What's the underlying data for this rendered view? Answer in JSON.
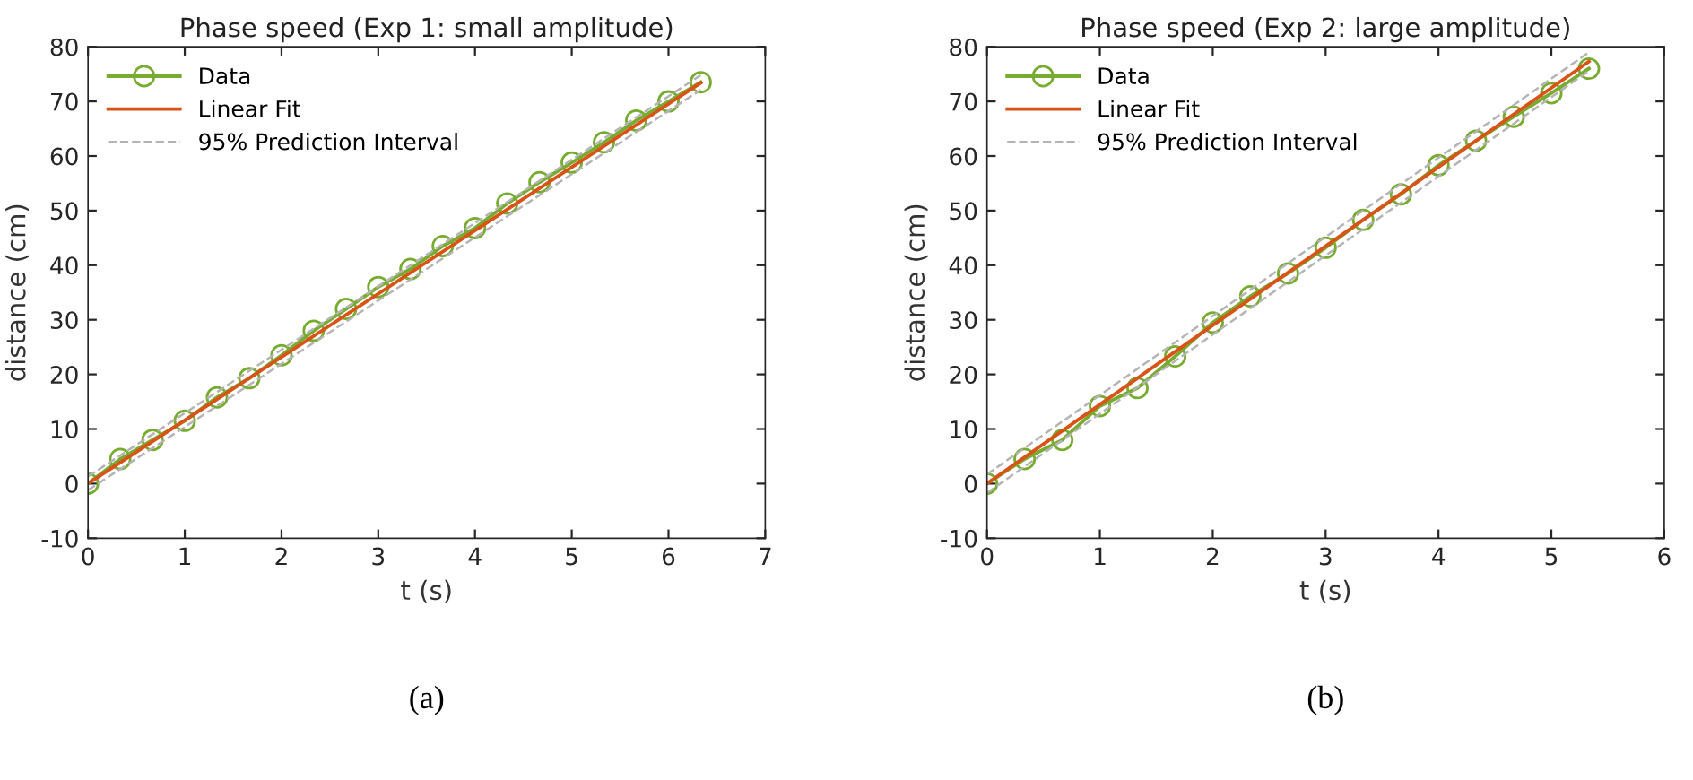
{
  "chart_data": [
    {
      "type": "line",
      "title": "Phase speed (Exp 1: small amplitude)",
      "xlabel": "t (s)",
      "ylabel": "distance (cm)",
      "annotations": [
        "(a)"
      ],
      "xlim": [
        0,
        7
      ],
      "xticks": [
        0,
        1,
        2,
        3,
        4,
        5,
        6,
        7
      ],
      "ylim": [
        -10,
        80
      ],
      "yticks": [
        -10,
        0,
        10,
        20,
        30,
        40,
        50,
        60,
        70,
        80
      ],
      "grid": false,
      "legend": "top left",
      "series": [
        {
          "name": "Data",
          "color": "#77ac30",
          "marker": "circle",
          "line_style": "solid",
          "x": [
            0,
            0.333,
            0.667,
            1,
            1.333,
            1.667,
            2,
            2.333,
            2.667,
            3,
            3.333,
            3.667,
            4,
            4.333,
            4.667,
            5,
            5.333,
            5.667,
            6,
            6.333
          ],
          "values": [
            0,
            4.5,
            8,
            11.5,
            15.8,
            19.3,
            23.5,
            28,
            32,
            36,
            39.3,
            43.5,
            46.8,
            51.3,
            55.2,
            58.8,
            62.5,
            66.5,
            70,
            73.5
          ]
        },
        {
          "name": "Linear Fit",
          "color": "#d95319",
          "marker": "none",
          "line_style": "solid",
          "x": [
            0,
            6.333
          ],
          "values": [
            0,
            73.4
          ]
        },
        {
          "name": "95% Prediction Interval",
          "color": "#b4b4b4",
          "marker": "none",
          "line_style": "dashed",
          "x": [
            0,
            6.333
          ],
          "values": [
            1.3,
            74.8
          ]
        },
        {
          "color": "#b4b4b4",
          "marker": "none",
          "line_style": "dashed",
          "x": [
            0,
            6.333
          ],
          "values": [
            -1.2,
            72.1
          ]
        }
      ]
    },
    {
      "type": "line",
      "title": "Phase speed (Exp 2: large amplitude)",
      "xlabel": "t (s)",
      "ylabel": "distance (cm)",
      "annotations": [
        "(b)"
      ],
      "xlim": [
        0,
        6
      ],
      "xticks": [
        0,
        1,
        2,
        3,
        4,
        5,
        6
      ],
      "ylim": [
        -10,
        80
      ],
      "yticks": [
        -10,
        0,
        10,
        20,
        30,
        40,
        50,
        60,
        70,
        80
      ],
      "grid": false,
      "legend": "top left",
      "series": [
        {
          "name": "Data",
          "color": "#77ac30",
          "marker": "circle",
          "line_style": "solid",
          "x": [
            0,
            0.333,
            0.667,
            1,
            1.333,
            1.667,
            2,
            2.333,
            2.667,
            3,
            3.333,
            3.667,
            4,
            4.333,
            4.667,
            5,
            5.333
          ],
          "values": [
            0,
            4.5,
            8,
            14.2,
            17.5,
            23.3,
            29.5,
            34.3,
            38.5,
            43.2,
            48.3,
            53,
            58.3,
            62.8,
            67.2,
            71.5,
            76
          ]
        },
        {
          "name": "Linear Fit",
          "color": "#d95319",
          "marker": "none",
          "line_style": "solid",
          "x": [
            0,
            5.333
          ],
          "values": [
            0,
            77.3
          ]
        },
        {
          "name": "95% Prediction Interval",
          "color": "#b4b4b4",
          "marker": "none",
          "line_style": "dashed",
          "x": [
            0,
            5.333
          ],
          "values": [
            1.7,
            79
          ]
        },
        {
          "color": "#b4b4b4",
          "marker": "none",
          "line_style": "dashed",
          "x": [
            0,
            5.333
          ],
          "values": [
            -1.7,
            75.6
          ]
        }
      ]
    }
  ]
}
